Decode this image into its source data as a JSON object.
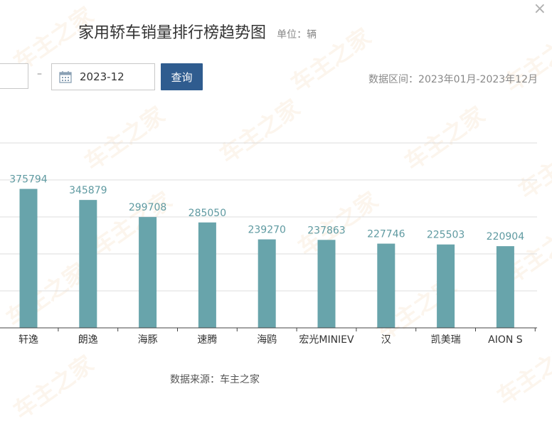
{
  "window": {
    "close_label": "×"
  },
  "header": {
    "title": "家用轿车销量排行榜趋势图",
    "unit_label": "单位：辆"
  },
  "filters": {
    "start_date": "",
    "separator": "–",
    "end_date": "2023-12",
    "query_label": "查询",
    "range_label": "数据区间：2023年01月-2023年12月"
  },
  "footer": {
    "source_label": "数据来源：车主之家"
  },
  "watermark": {
    "text": "车主之家"
  },
  "colors": {
    "bar": "#68a4ab",
    "label": "#5f9aa1",
    "grid": "#dcdcdc",
    "axis": "#444444",
    "button": "#2f5c8f"
  },
  "chart_data": {
    "type": "bar",
    "categories": [
      "轩逸",
      "朗逸",
      "海豚",
      "速腾",
      "海鸥",
      "宏光MINIEV",
      "汉",
      "凯美瑞",
      "AION S"
    ],
    "values": [
      375794,
      345879,
      299708,
      285050,
      239270,
      237863,
      227746,
      225503,
      220904
    ],
    "ylim": [
      0,
      500000
    ],
    "grid": true,
    "gridline_step": 100000
  }
}
